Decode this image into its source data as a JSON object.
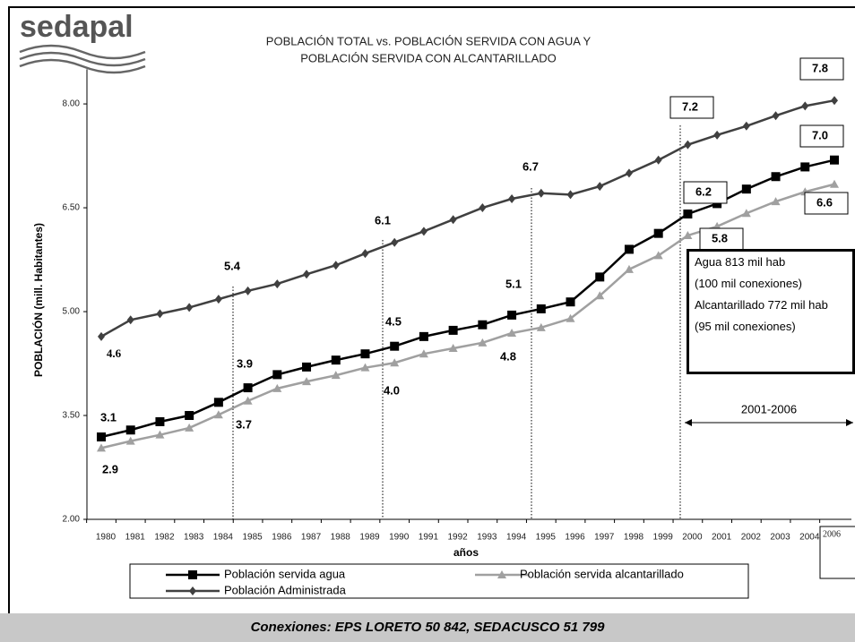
{
  "chart_data": {
    "type": "line",
    "logo": "sedapal",
    "title": [
      "POBLACIÓN TOTAL vs. POBLACIÓN SERVIDA CON AGUA  Y",
      "POBLACIÓN SERVIDA CON ALCANTARILLADO"
    ],
    "x_label": "años",
    "y_label": "POBLACIÓN (mill. Habitantes)",
    "categories": [
      "1980",
      "1981",
      "1982",
      "1983",
      "1984",
      "1985",
      "1986",
      "1987",
      "1988",
      "1989",
      "1990",
      "1991",
      "1992",
      "1993",
      "1994",
      "1995",
      "1996",
      "1997",
      "1998",
      "1999",
      "2000",
      "2001",
      "2002",
      "2003",
      "2004",
      "2006"
    ],
    "ylim": [
      2,
      8.5
    ],
    "yticks": [
      {
        "value": 2,
        "label": "2.00"
      },
      {
        "value": 3.5,
        "label": "3.50"
      },
      {
        "value": 5,
        "label": "5.00"
      },
      {
        "value": 6.5,
        "label": "6.50"
      },
      {
        "value": 8,
        "label": "8.00"
      }
    ],
    "series": [
      {
        "name": "Población servida agua",
        "color": "#000000",
        "values": [
          3.19,
          3.29,
          3.41,
          3.5,
          3.69,
          3.9,
          4.09,
          4.2,
          4.3,
          4.39,
          4.5,
          4.64,
          4.73,
          4.81,
          4.95,
          5.04,
          5.14,
          5.5,
          5.9,
          6.13,
          6.41,
          6.56,
          6.77,
          6.95,
          7.09,
          7.19
        ]
      },
      {
        "name": "Población servida alcantarillado",
        "color": "#a0a0a0",
        "values": [
          3.03,
          3.13,
          3.22,
          3.32,
          3.51,
          3.71,
          3.89,
          3.99,
          4.08,
          4.19,
          4.26,
          4.39,
          4.47,
          4.55,
          4.69,
          4.77,
          4.9,
          5.23,
          5.61,
          5.81,
          6.1,
          6.23,
          6.42,
          6.59,
          6.73,
          6.84
        ]
      },
      {
        "name": "Población Administrada",
        "color": "#404040",
        "values": [
          4.64,
          4.88,
          4.97,
          5.06,
          5.18,
          5.3,
          5.4,
          5.54,
          5.67,
          5.84,
          6.0,
          6.16,
          6.33,
          6.5,
          6.63,
          6.71,
          6.69,
          6.81,
          7.0,
          7.19,
          7.41,
          7.55,
          7.68,
          7.83,
          7.97,
          8.05
        ]
      }
    ],
    "annotations": [
      "7.8",
      "7.2",
      "7.0",
      "6.7",
      "6.2",
      "6.6",
      "6.1",
      "5.8",
      "5.4",
      "5.1",
      "4.5",
      "4.6",
      "3.9",
      "4.8",
      "4.0",
      "3.1",
      "3.7",
      "2.9"
    ],
    "period": "2001-2006",
    "info_box": [
      "Agua 813 mil hab",
      "(100 mil conexiones)",
      "Alcantarillado 772 mil hab",
      "(95 mil conexiones)"
    ],
    "footer": "Conexiones: EPS LORETO 50 842, SEDACUSCO 51 799"
  }
}
